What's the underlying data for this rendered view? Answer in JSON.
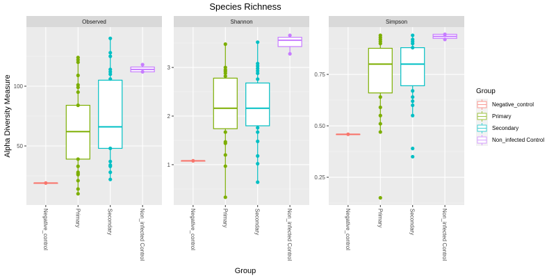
{
  "chart_data": {
    "type": "box",
    "title": "Species Richness",
    "xlabel": "Group",
    "ylabel": "Alpha Diversity Measure",
    "categories": [
      "Negative_control",
      "Primary",
      "Secondary",
      "Non_infected Control"
    ],
    "legend": {
      "title": "Group",
      "position": "right",
      "entries": [
        {
          "label": "Negative_control",
          "color": "#F8766D"
        },
        {
          "label": "Primary",
          "color": "#7CAE00"
        },
        {
          "label": "Secondary",
          "color": "#00BFC4"
        },
        {
          "label": "Non_infected Control",
          "color": "#C77CFF"
        }
      ]
    },
    "grid": true,
    "panels": [
      {
        "name": "Observed",
        "ylim": [
          0.6,
          149.4
        ],
        "yticks": [
          50,
          100
        ],
        "ytick_labels": [
          "50",
          "100"
        ],
        "yminor": [
          25,
          75,
          125
        ],
        "groups": [
          {
            "category": "Negative_control",
            "q1": 19,
            "median": 19,
            "q3": 19,
            "whisker_low": 19,
            "whisker_high": 19,
            "points": [
              19
            ]
          },
          {
            "category": "Primary",
            "q1": 39,
            "median": 62,
            "q3": 84,
            "whisker_low": 10,
            "whisker_high": 124,
            "points": [
              124,
              122,
              120,
              109,
              101,
              99,
              95,
              84,
              39,
              33,
              28,
              27,
              26,
              21,
              14,
              10
            ]
          },
          {
            "category": "Secondary",
            "q1": 48,
            "median": 66,
            "q3": 105,
            "whisker_low": 22,
            "whisker_high": 140,
            "points": [
              140,
              128,
              125,
              114,
              112,
              110,
              106,
              48,
              37,
              34,
              33,
              28,
              22
            ]
          },
          {
            "category": "Non_infected Control",
            "q1": 112,
            "median": 114,
            "q3": 116,
            "whisker_low": 112,
            "whisker_high": 118,
            "points": [
              118,
              112
            ]
          }
        ]
      },
      {
        "name": "Shannon",
        "ylim": [
          0.17,
          3.83
        ],
        "yticks": [
          1,
          2,
          3
        ],
        "ytick_labels": [
          "1",
          "2",
          "3"
        ],
        "yminor": [
          0.5,
          1.5,
          2.5,
          3.5
        ],
        "groups": [
          {
            "category": "Negative_control",
            "q1": 1.08,
            "median": 1.08,
            "q3": 1.08,
            "whisker_low": 1.08,
            "whisker_high": 1.08,
            "points": [
              1.08
            ]
          },
          {
            "category": "Primary",
            "q1": 1.74,
            "median": 2.16,
            "q3": 2.78,
            "whisker_low": 0.33,
            "whisker_high": 3.48,
            "points": [
              3.48,
              3.0,
              2.95,
              2.92,
              2.88,
              2.82,
              1.67,
              1.47,
              1.44,
              1.2,
              0.97,
              0.33
            ]
          },
          {
            "category": "Secondary",
            "q1": 1.8,
            "median": 2.16,
            "q3": 2.68,
            "whisker_low": 0.64,
            "whisker_high": 3.52,
            "points": [
              3.52,
              3.08,
              3.03,
              2.98,
              2.93,
              2.88,
              2.76,
              1.76,
              1.67,
              1.48,
              1.18,
              1.02,
              0.64
            ]
          },
          {
            "category": "Non_infected Control",
            "q1": 3.43,
            "median": 3.56,
            "q3": 3.62,
            "whisker_low": 3.28,
            "whisker_high": 3.66,
            "points": [
              3.66,
              3.28
            ]
          }
        ]
      },
      {
        "name": "Simpson",
        "ylim": [
          0.115,
          0.98
        ],
        "yticks": [
          0.25,
          0.5,
          0.75
        ],
        "ytick_labels": [
          "0.25",
          "0.50",
          "0.75"
        ],
        "yminor": [
          0.125,
          0.375,
          0.625,
          0.875
        ],
        "groups": [
          {
            "category": "Negative_control",
            "q1": 0.459,
            "median": 0.459,
            "q3": 0.459,
            "whisker_low": 0.459,
            "whisker_high": 0.459,
            "points": [
              0.459
            ]
          },
          {
            "category": "Primary",
            "q1": 0.66,
            "median": 0.8,
            "q3": 0.877,
            "whisker_low": 0.47,
            "whisker_high": 0.94,
            "points": [
              0.94,
              0.93,
              0.92,
              0.91,
              0.9,
              0.64,
              0.59,
              0.55,
              0.51,
              0.47,
              0.15
            ]
          },
          {
            "category": "Secondary",
            "q1": 0.695,
            "median": 0.8,
            "q3": 0.88,
            "whisker_low": 0.55,
            "whisker_high": 0.94,
            "points": [
              0.94,
              0.92,
              0.91,
              0.9,
              0.88,
              0.67,
              0.64,
              0.62,
              0.6,
              0.55,
              0.39,
              0.35
            ]
          },
          {
            "category": "Non_infected Control",
            "q1": 0.925,
            "median": 0.935,
            "q3": 0.945,
            "whisker_low": 0.92,
            "whisker_high": 0.945,
            "points": [
              0.945,
              0.92
            ]
          }
        ]
      }
    ]
  }
}
